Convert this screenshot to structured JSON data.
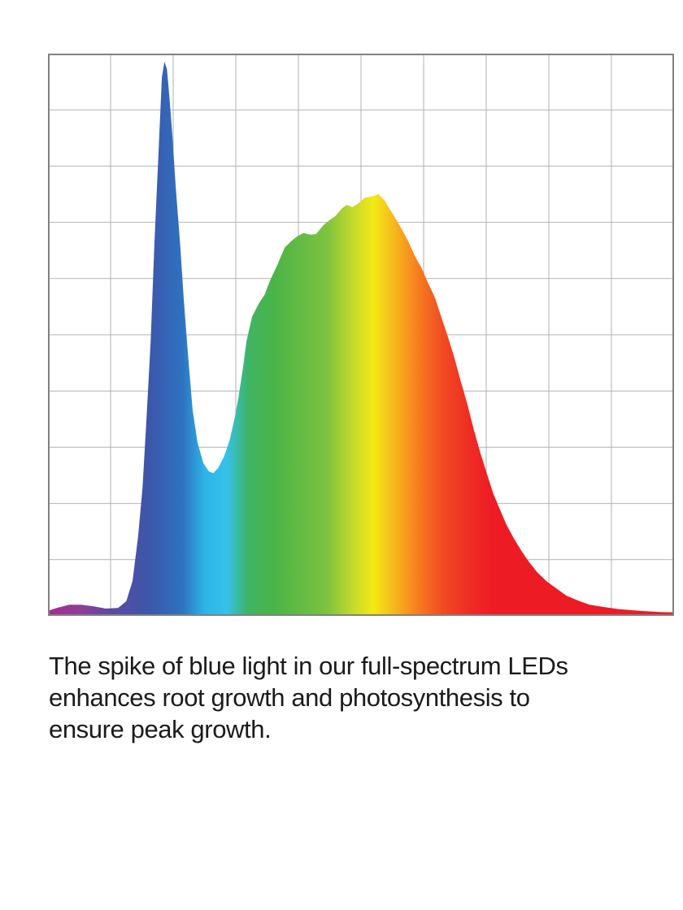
{
  "page": {
    "background_color": "#ffffff"
  },
  "chart_data": {
    "type": "area",
    "title": "",
    "xlabel": "",
    "ylabel": "",
    "axes_labeled": false,
    "description": "Full-spectrum LED output: relative intensity across the visible spectrum (violet to red) with a sharp blue spike and a broad green-to-red hump; 10x10 light gridlines, no tick labels.",
    "x_unit": "percent_of_x_axis",
    "y_unit": "percent_relative_intensity",
    "grid": {
      "columns": 10,
      "rows": 10,
      "line_color": "#b2b2b2",
      "border_color": "#818181"
    },
    "features": {
      "blue_spike_peak": {
        "x_pct": 18.6,
        "intensity_pct": 98.6
      },
      "valley": {
        "x_pct": 26.4,
        "intensity_pct": 25.4
      },
      "broad_peak": {
        "x_pct": 52.8,
        "intensity_pct": 75.0
      }
    },
    "points": [
      [
        0.0,
        0.9
      ],
      [
        1.4,
        1.4
      ],
      [
        3.4,
        2.0
      ],
      [
        5.3,
        2.0
      ],
      [
        7.3,
        1.7
      ],
      [
        9.2,
        1.3
      ],
      [
        11.2,
        1.4
      ],
      [
        12.5,
        2.6
      ],
      [
        13.5,
        6.2
      ],
      [
        14.4,
        14.2
      ],
      [
        15.1,
        22.8
      ],
      [
        15.7,
        34.4
      ],
      [
        16.4,
        48.8
      ],
      [
        17.0,
        66.2
      ],
      [
        17.7,
        83.5
      ],
      [
        18.2,
        95.8
      ],
      [
        18.6,
        98.6
      ],
      [
        19.0,
        97.3
      ],
      [
        19.4,
        92.2
      ],
      [
        19.9,
        85.0
      ],
      [
        20.4,
        76.3
      ],
      [
        21.1,
        66.2
      ],
      [
        21.7,
        56.1
      ],
      [
        22.4,
        46.0
      ],
      [
        23.1,
        36.6
      ],
      [
        23.9,
        30.8
      ],
      [
        24.8,
        27.2
      ],
      [
        25.7,
        25.7
      ],
      [
        26.4,
        25.4
      ],
      [
        27.2,
        26.3
      ],
      [
        28.1,
        28.3
      ],
      [
        29.0,
        31.2
      ],
      [
        29.8,
        35.1
      ],
      [
        30.4,
        38.7
      ],
      [
        31.1,
        43.8
      ],
      [
        31.7,
        48.8
      ],
      [
        32.6,
        53.2
      ],
      [
        33.7,
        55.6
      ],
      [
        34.6,
        57.1
      ],
      [
        35.5,
        59.7
      ],
      [
        36.5,
        62.1
      ],
      [
        37.8,
        65.5
      ],
      [
        38.8,
        66.6
      ],
      [
        39.8,
        67.5
      ],
      [
        40.8,
        68.1
      ],
      [
        41.9,
        67.8
      ],
      [
        42.8,
        67.9
      ],
      [
        44.0,
        69.5
      ],
      [
        45.0,
        70.4
      ],
      [
        45.9,
        71.1
      ],
      [
        46.9,
        72.4
      ],
      [
        47.7,
        73.1
      ],
      [
        48.6,
        72.7
      ],
      [
        49.5,
        73.3
      ],
      [
        50.6,
        74.4
      ],
      [
        51.8,
        74.6
      ],
      [
        52.8,
        75.0
      ],
      [
        53.8,
        73.8
      ],
      [
        54.5,
        72.5
      ],
      [
        55.5,
        70.7
      ],
      [
        56.6,
        68.6
      ],
      [
        57.6,
        66.5
      ],
      [
        58.6,
        64.0
      ],
      [
        59.7,
        61.8
      ],
      [
        60.7,
        59.2
      ],
      [
        61.8,
        56.6
      ],
      [
        62.8,
        53.2
      ],
      [
        63.8,
        49.9
      ],
      [
        64.9,
        46.0
      ],
      [
        65.9,
        41.9
      ],
      [
        67.0,
        37.6
      ],
      [
        68.0,
        33.2
      ],
      [
        69.0,
        29.2
      ],
      [
        70.1,
        25.3
      ],
      [
        71.1,
        21.8
      ],
      [
        72.2,
        18.9
      ],
      [
        73.2,
        16.3
      ],
      [
        74.3,
        14.0
      ],
      [
        75.6,
        11.6
      ],
      [
        76.9,
        9.5
      ],
      [
        78.2,
        7.7
      ],
      [
        79.7,
        6.1
      ],
      [
        81.3,
        4.8
      ],
      [
        82.8,
        3.6
      ],
      [
        84.7,
        2.7
      ],
      [
        86.5,
        2.0
      ],
      [
        88.6,
        1.6
      ],
      [
        91.2,
        1.2
      ],
      [
        94.4,
        0.9
      ],
      [
        97.7,
        0.7
      ],
      [
        100.0,
        0.6
      ]
    ],
    "gradient_stops": [
      {
        "offset": 0.0,
        "color": "#aa2a8e"
      },
      {
        "offset": 0.053,
        "color": "#8d3f96"
      },
      {
        "offset": 0.105,
        "color": "#5a4aa3"
      },
      {
        "offset": 0.16,
        "color": "#3c56aa"
      },
      {
        "offset": 0.215,
        "color": "#2e72c0"
      },
      {
        "offset": 0.25,
        "color": "#2db4e6"
      },
      {
        "offset": 0.285,
        "color": "#35c2ea"
      },
      {
        "offset": 0.32,
        "color": "#3fb463"
      },
      {
        "offset": 0.36,
        "color": "#4ab448"
      },
      {
        "offset": 0.445,
        "color": "#7cc23f"
      },
      {
        "offset": 0.49,
        "color": "#c8dc2a"
      },
      {
        "offset": 0.52,
        "color": "#f3e914"
      },
      {
        "offset": 0.555,
        "color": "#f6b41d"
      },
      {
        "offset": 0.595,
        "color": "#f5781f"
      },
      {
        "offset": 0.63,
        "color": "#f14b22"
      },
      {
        "offset": 0.672,
        "color": "#ee2d24"
      },
      {
        "offset": 0.71,
        "color": "#ed1c24"
      },
      {
        "offset": 1.0,
        "color": "#ed1c24"
      }
    ]
  },
  "caption": {
    "text": "The spike of blue light in our full-spectrum LEDs enhances root growth and photosynthesis to ensure peak growth.",
    "lines": [
      "The spike of blue light in our full-spectrum LEDs",
      "enhances root growth and photosynthesis to",
      "ensure peak growth."
    ],
    "color": "#1b1b1b"
  }
}
